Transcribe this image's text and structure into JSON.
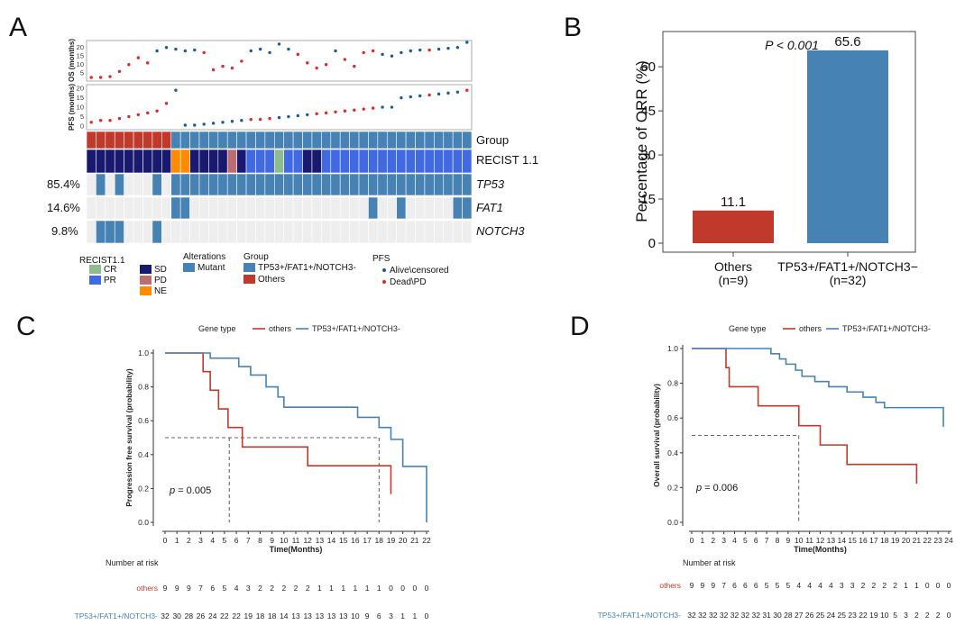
{
  "colors": {
    "red": "#c0392b",
    "blue": "#4682b4",
    "navy": "#191970",
    "cr": "#8fbc8f",
    "pr": "#4169e1",
    "pd": "#bc6e6e",
    "ne": "#ff8c00",
    "mutant": "#4682b4",
    "empty": "#eeeeee",
    "alive": "#1a5c99",
    "dead": "#e0272a"
  },
  "panel_labels": {
    "a": "A",
    "b": "B",
    "c": "C",
    "d": "D"
  },
  "panelA": {
    "os_ylabel": "OS (months)",
    "pfs_ylabel": "PFS (months)",
    "os_ticks": [
      5,
      10,
      15,
      20
    ],
    "pfs_ticks": [
      0,
      5,
      10,
      15,
      20
    ],
    "group_order": [
      "O",
      "O",
      "O",
      "O",
      "O",
      "O",
      "O",
      "O",
      "O",
      "T",
      "T",
      "T",
      "T",
      "T",
      "T",
      "T",
      "T",
      "T",
      "T",
      "T",
      "T",
      "T",
      "T",
      "T",
      "T",
      "T",
      "T",
      "T",
      "T",
      "T",
      "T",
      "T",
      "T",
      "T",
      "T",
      "T",
      "T",
      "T",
      "T",
      "T",
      "T"
    ],
    "recist": [
      "SD",
      "SD",
      "SD",
      "SD",
      "SD",
      "SD",
      "SD",
      "SD",
      "SD",
      "NE",
      "NE",
      "SD",
      "SD",
      "SD",
      "SD",
      "PD",
      "SD",
      "PR",
      "PR",
      "PR",
      "CR",
      "PR",
      "PR",
      "SD",
      "SD",
      "PR",
      "PR",
      "PR",
      "PR",
      "PR",
      "PR",
      "PR",
      "PR",
      "PR",
      "PR",
      "PR",
      "PR",
      "PR",
      "PR",
      "PR",
      "PR"
    ],
    "tp53_mut": [
      0,
      1,
      0,
      1,
      0,
      0,
      0,
      1,
      0,
      1,
      1,
      1,
      1,
      1,
      1,
      1,
      1,
      1,
      1,
      1,
      1,
      1,
      1,
      1,
      1,
      1,
      1,
      1,
      1,
      1,
      1,
      1,
      1,
      1,
      1,
      1,
      1,
      1,
      1,
      1,
      1
    ],
    "fat1_mut": [
      0,
      0,
      0,
      0,
      0,
      0,
      0,
      0,
      0,
      1,
      1,
      0,
      0,
      0,
      0,
      0,
      0,
      0,
      0,
      0,
      0,
      0,
      0,
      0,
      0,
      0,
      0,
      0,
      0,
      0,
      1,
      0,
      0,
      1,
      0,
      0,
      0,
      0,
      0,
      1,
      1
    ],
    "notch3_mut": [
      0,
      1,
      1,
      1,
      0,
      0,
      0,
      1,
      0,
      0,
      0,
      0,
      0,
      0,
      0,
      0,
      0,
      0,
      0,
      0,
      0,
      0,
      0,
      0,
      0,
      0,
      0,
      0,
      0,
      0,
      0,
      0,
      0,
      0,
      0,
      0,
      0,
      0,
      0,
      0,
      0
    ],
    "pfs_values": [
      2,
      3,
      3,
      4,
      5,
      6,
      7,
      8,
      12,
      19,
      0.5,
      0.5,
      1,
      1.5,
      2,
      2.5,
      3,
      3.5,
      3.5,
      4,
      4.5,
      5,
      5.5,
      6,
      6.5,
      7,
      7.5,
      8,
      8.5,
      9,
      9.5,
      10,
      10,
      15,
      15.5,
      16,
      16.5,
      17,
      17.5,
      18,
      19
    ],
    "pfs_status": [
      "D",
      "D",
      "D",
      "D",
      "D",
      "D",
      "D",
      "D",
      "D",
      "A",
      "A",
      "A",
      "A",
      "A",
      "A",
      "A",
      "A",
      "D",
      "D",
      "D",
      "A",
      "A",
      "A",
      "A",
      "D",
      "D",
      "D",
      "D",
      "D",
      "D",
      "D",
      "A",
      "A",
      "A",
      "A",
      "A",
      "D",
      "A",
      "A",
      "A",
      "D"
    ],
    "os_values": [
      2.5,
      2.5,
      3,
      6,
      10,
      14,
      11,
      18,
      20,
      19,
      18,
      18.5,
      17,
      7,
      9,
      8,
      12,
      18,
      19,
      17,
      22,
      19,
      16,
      11,
      8,
      10,
      18,
      13,
      9,
      17,
      18,
      16,
      15,
      17,
      18,
      18.5,
      18.5,
      19,
      19.5,
      20,
      23
    ],
    "os_status": [
      "D",
      "D",
      "D",
      "D",
      "D",
      "D",
      "D",
      "A",
      "A",
      "A",
      "A",
      "A",
      "D",
      "D",
      "D",
      "D",
      "D",
      "A",
      "A",
      "A",
      "A",
      "A",
      "D",
      "D",
      "D",
      "D",
      "A",
      "D",
      "D",
      "D",
      "D",
      "A",
      "A",
      "A",
      "A",
      "A",
      "D",
      "A",
      "A",
      "A",
      "A"
    ],
    "track_labels": {
      "group": "Group",
      "recist": "RECIST 1.1",
      "tp53": "TP53",
      "fat1": "FAT1",
      "notch3": "NOTCH3"
    },
    "percents": {
      "tp53": "85.4%",
      "fat1": "14.6%",
      "notch3": "9.8%"
    },
    "legend": {
      "recist_title": "RECIST1.1",
      "recist_items": [
        "CR",
        "PR",
        "SD",
        "PD",
        "NE"
      ],
      "alterations_title": "Alterations",
      "alterations_items": [
        "Mutant"
      ],
      "group_title": "Group",
      "group_items": [
        "TP53+/FAT1+/NOTCH3-",
        "Others"
      ],
      "pfs_title": "PFS",
      "pfs_items": [
        "Alive\\censored",
        "Dead\\PD"
      ]
    }
  },
  "panelB": {
    "chart_data": {
      "type": "bar",
      "categories": [
        "Others\n(n=9)",
        "TP53+/FAT1+/NOTCH3−\n(n=32)"
      ],
      "values": [
        11.1,
        65.6
      ],
      "value_labels": [
        "11.1",
        "65.6"
      ],
      "ylabel": "Percentage of ORR (%)",
      "yticks": [
        0,
        15,
        30,
        45,
        60
      ],
      "ylim": [
        0,
        72
      ],
      "annotation": "P < 0.001"
    }
  },
  "panelC": {
    "chart_data": {
      "type": "line",
      "legend_title": "Gene type",
      "series_names": [
        "others",
        "TP53+/FAT1+/NOTCH3-"
      ],
      "ylabel": "Progression free survival (probability)",
      "xlabel": "Time(Months)",
      "yticks": [
        "0.0",
        "0.2",
        "0.4",
        "0.6",
        "0.8",
        "1.0"
      ],
      "xmax": 22,
      "xticks": [
        "0",
        "1",
        "2",
        "3",
        "4",
        "5",
        "6",
        "7",
        "8",
        "9",
        "10",
        "11",
        "12",
        "13",
        "14",
        "15",
        "16",
        "17",
        "18",
        "19",
        "20",
        "21",
        "22"
      ],
      "series": [
        {
          "name": "others",
          "x": [
            0,
            2.8,
            3.2,
            3.8,
            4.5,
            5.3,
            6.5,
            12,
            19
          ],
          "y": [
            1,
            1,
            0.89,
            0.78,
            0.67,
            0.56,
            0.445,
            0.334,
            0.167
          ]
        },
        {
          "name": "TP53+/FAT1+/NOTCH3-",
          "x": [
            0,
            2.5,
            3.8,
            6.2,
            7.2,
            8.5,
            9.5,
            10,
            16.2,
            18,
            19,
            20,
            22
          ],
          "y": [
            1,
            1,
            0.97,
            0.92,
            0.87,
            0.8,
            0.74,
            0.68,
            0.62,
            0.56,
            0.49,
            0.33,
            0
          ]
        }
      ],
      "median_times": [
        5.4,
        18
      ],
      "p_label": "p",
      "p_value": " = 0.005",
      "risk_title": "Number at risk",
      "risk_labels": [
        "others",
        "TP53+/FAT1+/NOTCH3-"
      ],
      "risk_others": [
        9,
        9,
        9,
        7,
        6,
        5,
        4,
        3,
        2,
        2,
        2,
        2,
        2,
        1,
        1,
        1,
        1,
        1,
        1,
        0,
        0,
        0,
        0
      ],
      "risk_tp53": [
        32,
        30,
        28,
        26,
        24,
        22,
        22,
        19,
        18,
        18,
        14,
        13,
        13,
        13,
        13,
        13,
        10,
        9,
        6,
        3,
        1,
        1,
        0
      ]
    }
  },
  "panelD": {
    "chart_data": {
      "type": "line",
      "legend_title": "Gene type",
      "series_names": [
        "others",
        "TP53+/FAT1+/NOTCH3-"
      ],
      "ylabel": "Overall survival (probability)",
      "xlabel": "Time(Months)",
      "yticks": [
        "0.0",
        "0.2",
        "0.4",
        "0.6",
        "0.8",
        "1.0"
      ],
      "xmax": 24,
      "xticks": [
        "0",
        "1",
        "2",
        "3",
        "4",
        "5",
        "6",
        "7",
        "8",
        "9",
        "10",
        "11",
        "12",
        "13",
        "14",
        "15",
        "16",
        "17",
        "18",
        "19",
        "20",
        "21",
        "22",
        "23",
        "24"
      ],
      "series": [
        {
          "name": "others",
          "x": [
            0,
            2.8,
            3.2,
            3.5,
            6.2,
            10,
            12,
            14.5,
            21
          ],
          "y": [
            1,
            1,
            0.89,
            0.78,
            0.67,
            0.556,
            0.445,
            0.333,
            0.222
          ]
        },
        {
          "name": "TP53+/FAT1+/NOTCH3-",
          "x": [
            0,
            6.5,
            7.4,
            8.2,
            8.8,
            9.7,
            10.3,
            11.5,
            12.8,
            14.5,
            16,
            17.2,
            18,
            23.5
          ],
          "y": [
            1,
            1,
            0.97,
            0.94,
            0.91,
            0.875,
            0.84,
            0.81,
            0.78,
            0.75,
            0.72,
            0.69,
            0.66,
            0.55
          ]
        }
      ],
      "median_times": [
        10
      ],
      "p_label": "p",
      "p_value": " = 0.006",
      "risk_title": "Number at risk",
      "risk_labels": [
        "others",
        "TP53+/FAT1+/NOTCH3-"
      ],
      "risk_others": [
        9,
        9,
        9,
        7,
        6,
        6,
        6,
        5,
        5,
        5,
        4,
        4,
        4,
        4,
        3,
        3,
        2,
        2,
        2,
        2,
        1,
        1,
        0,
        0,
        0
      ],
      "risk_tp53": [
        32,
        32,
        32,
        32,
        32,
        32,
        32,
        31,
        30,
        28,
        27,
        26,
        25,
        24,
        25,
        23,
        22,
        19,
        10,
        5,
        3,
        2,
        2,
        2,
        0
      ]
    }
  }
}
